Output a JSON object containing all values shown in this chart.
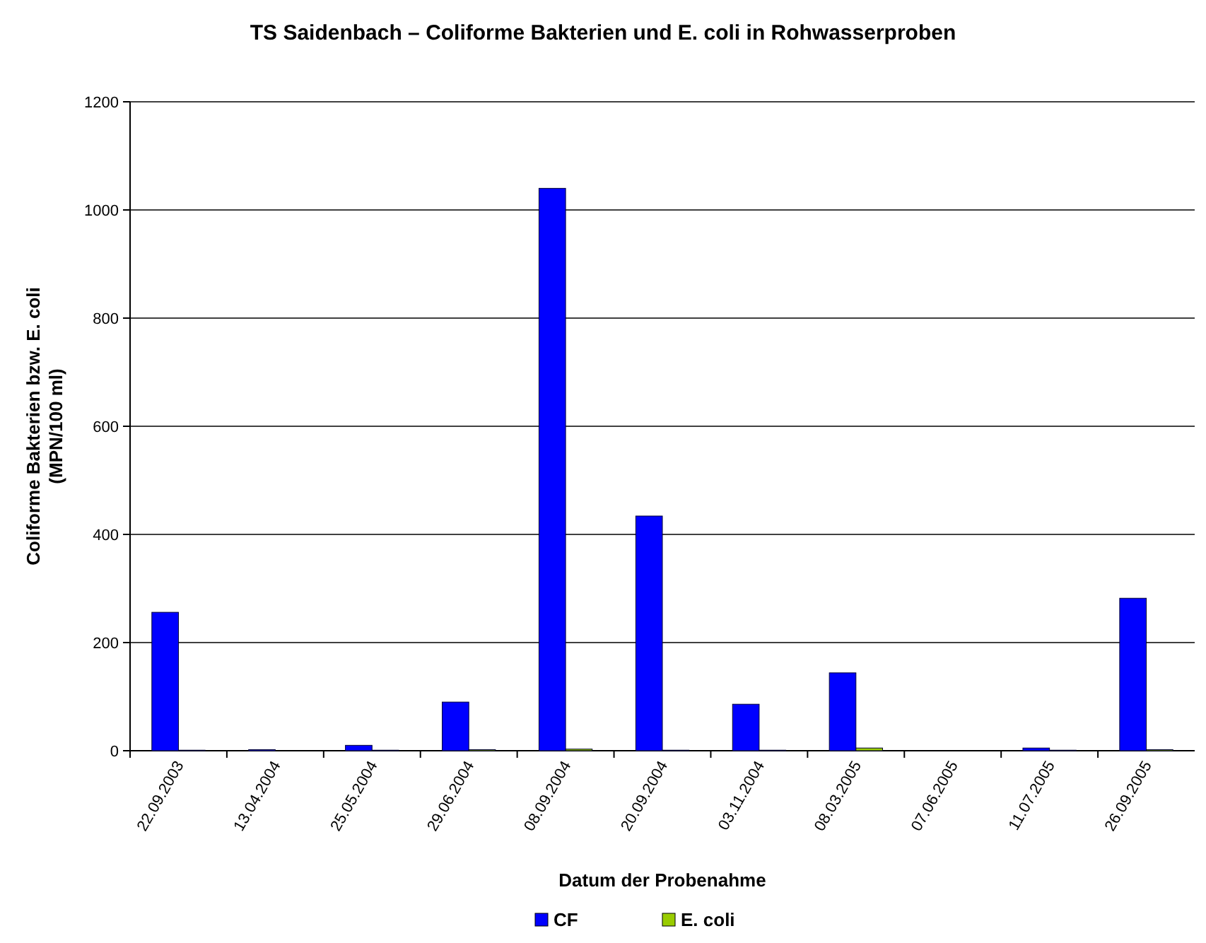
{
  "chart_data": {
    "type": "bar",
    "title": "TS Saidenbach – Coliforme Bakterien und E. coli in Rohwasserproben",
    "xlabel": "Datum der Probenahme",
    "ylabel": "Coliforme Bakterien bzw. E. coli (MPN/100 ml)",
    "categories": [
      "22.09.2003",
      "13.04.2004",
      "25.05.2004",
      "29.06.2004",
      "08.09.2004",
      "20.09.2004",
      "03.11.2004",
      "08.03.2005",
      "07.06.2005",
      "11.07.2005",
      "26.09.2005"
    ],
    "series": [
      {
        "name": "CF",
        "color": "#0000ff",
        "values": [
          256,
          2,
          10,
          90,
          1040,
          434,
          86,
          144,
          0,
          5,
          282
        ]
      },
      {
        "name": "E. coli",
        "color": "#99cc00",
        "values": [
          1,
          0,
          1,
          2,
          3,
          1,
          1,
          5,
          0,
          1,
          2
        ]
      }
    ],
    "ylim": [
      0,
      1200
    ],
    "yticks": [
      0,
      200,
      400,
      600,
      800,
      1000,
      1200
    ],
    "grid": "y",
    "legend": "bottom"
  }
}
